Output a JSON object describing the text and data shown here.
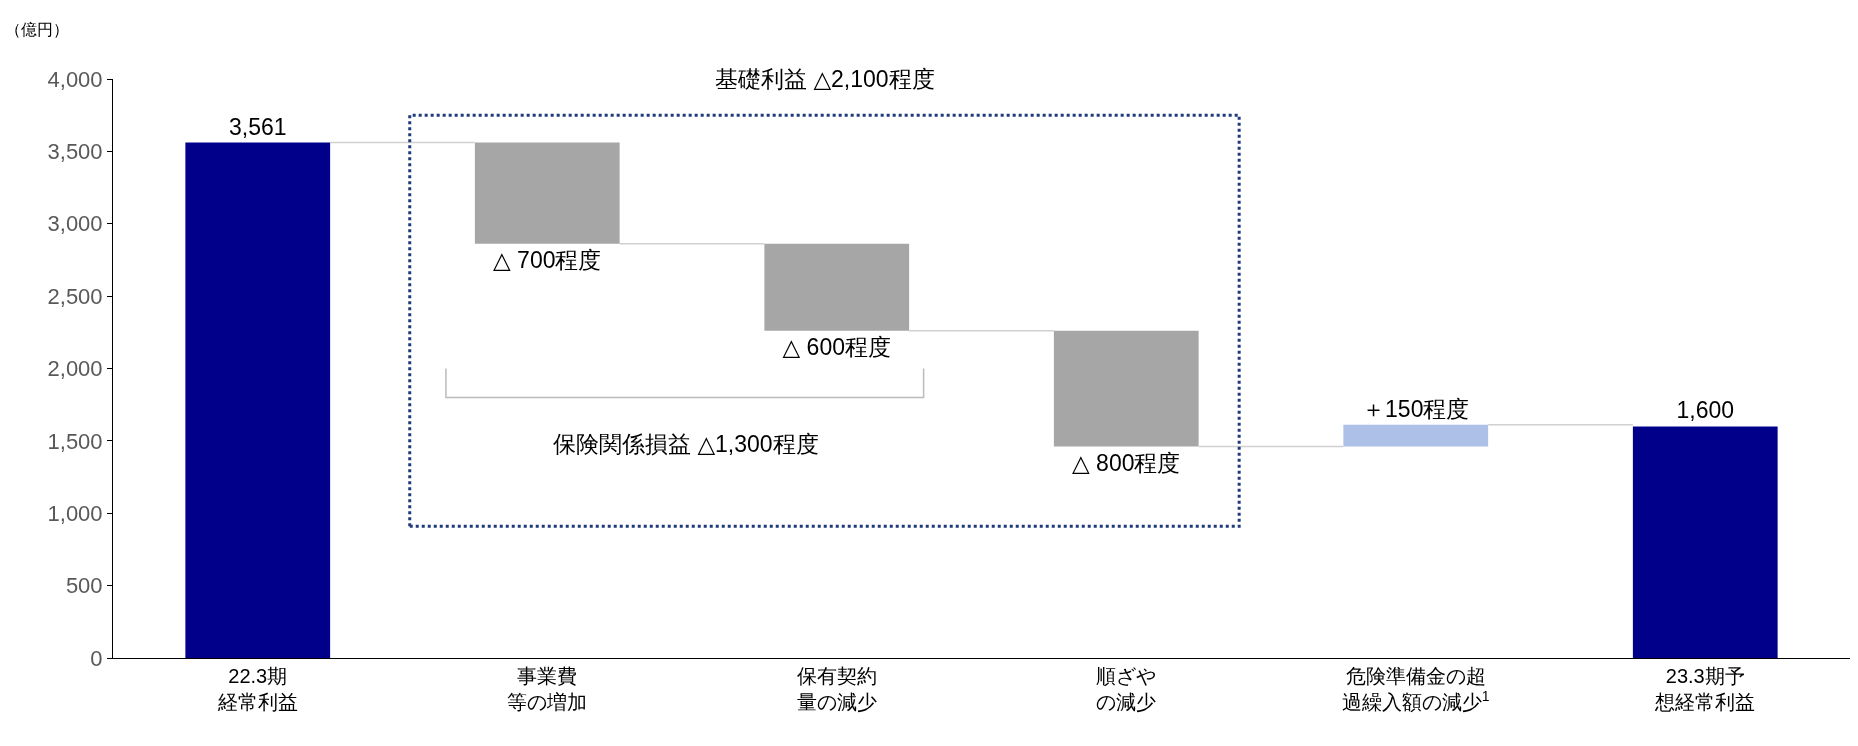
{
  "chart_data": {
    "type": "bar",
    "ylabel": "（億円）",
    "categories": [
      "22.3期経常利益",
      "事業費等の増加",
      "保有契約量の減少",
      "順ざやの減少",
      "危険準備金の超過繰入額の減少$^{1}$",
      "23.3期予想経常利益"
    ],
    "base": [
      0,
      3561,
      2861,
      2261,
      1461,
      0
    ],
    "values": [
      3561,
      -700,
      -600,
      -800,
      150,
      1600
    ],
    "colors": [
      "#00008b",
      "#a6a6a6",
      "#a6a6a6",
      "#a6a6a6",
      "#adc0e8",
      "#00008b"
    ],
    "value_labels": [
      "3,561",
      "△ 700程度",
      "△ 600程度",
      "△ 800程度",
      "＋150程度",
      "1,600"
    ],
    "annotations": [
      "基礎利益 △2,100程度",
      "保険関係損益 △1,300程度"
    ],
    "ylim": [
      0,
      4000
    ],
    "yticks": [
      0,
      500,
      {
        "value": 1000,
        "label": "1,000"
      },
      {
        "value": 1500,
        "label": "1,500"
      },
      {
        "value": 2000,
        "label": "2,000"
      },
      {
        "value": 2500,
        "label": "2,500"
      },
      {
        "value": 3000,
        "label": "3,000"
      },
      {
        "value": 3500,
        "label": "3,500"
      },
      {
        "value": 4000,
        "label": "4,000"
      }
    ],
    "grid": false
  }
}
